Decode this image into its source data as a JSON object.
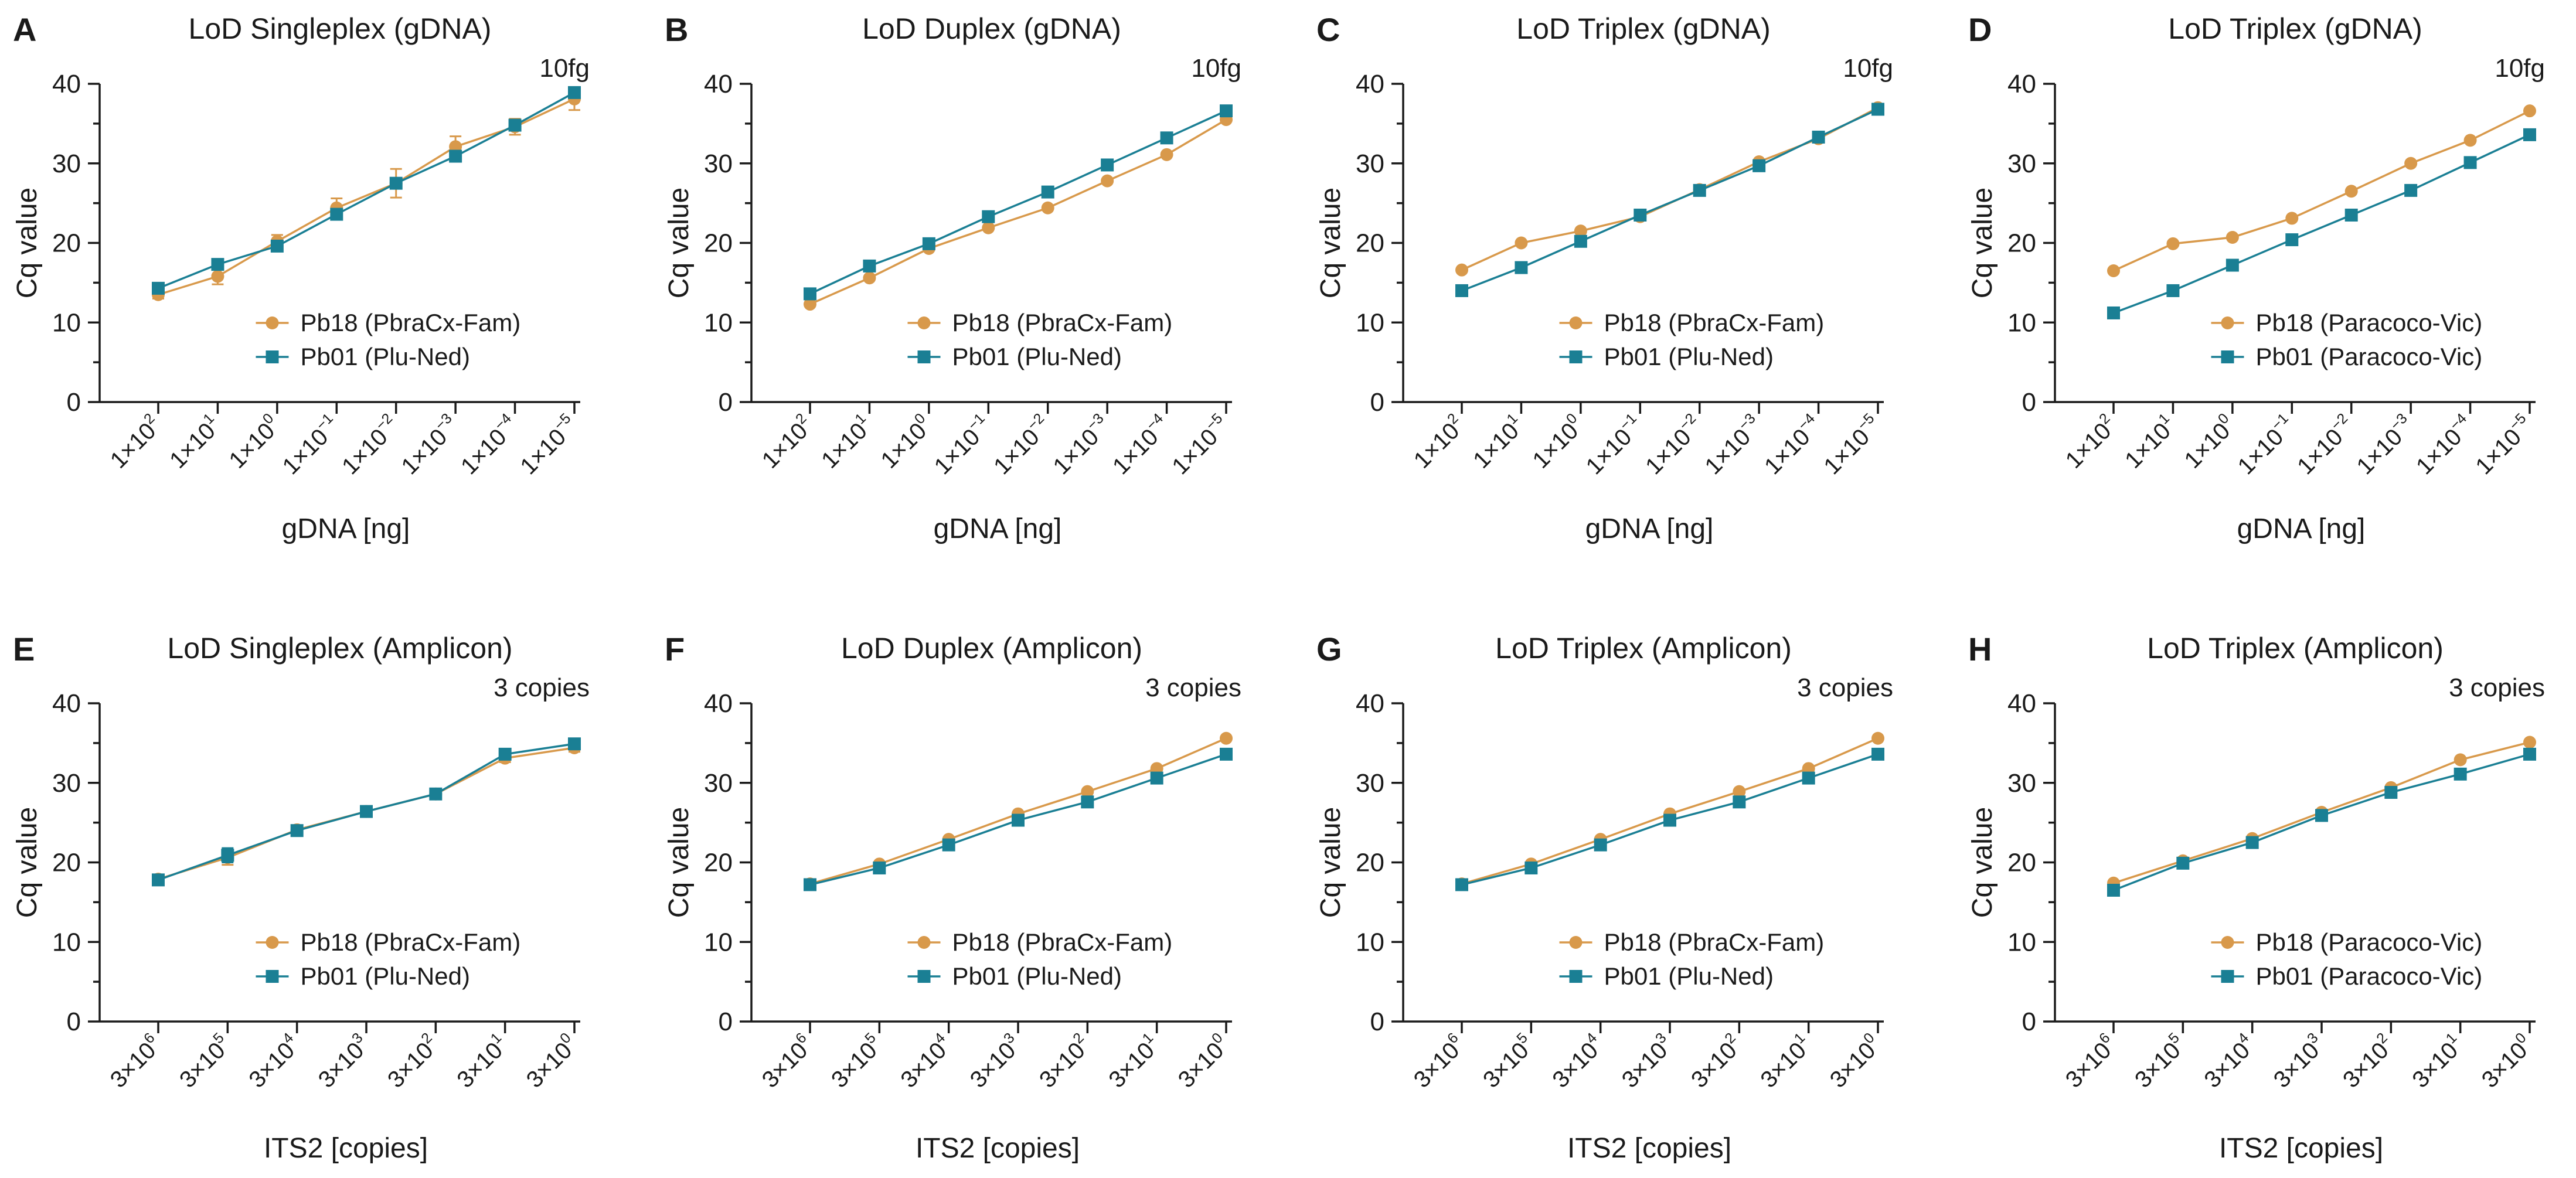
{
  "colors": {
    "series1": "#D8994B",
    "series2": "#1A7F94",
    "axis": "#1a1a1a"
  },
  "chart_data": [
    {
      "panel": "A",
      "type": "line",
      "title": "LoD Singleplex (gDNA)",
      "xlabel": "gDNA [ng]",
      "ylabel": "Cq value",
      "ylim": [
        0,
        40
      ],
      "yticks": [
        "0",
        "10",
        "20",
        "30",
        "40"
      ],
      "annotation": "10fg",
      "categories": [
        {
          "base": "1×10",
          "exp": "2"
        },
        {
          "base": "1×10",
          "exp": "1"
        },
        {
          "base": "1×10",
          "exp": "0"
        },
        {
          "base": "1×10",
          "exp": "−1"
        },
        {
          "base": "1×10",
          "exp": "−2"
        },
        {
          "base": "1×10",
          "exp": "−3"
        },
        {
          "base": "1×10",
          "exp": "−4"
        },
        {
          "base": "1×10",
          "exp": "−5"
        }
      ],
      "series": [
        {
          "name": "Pb18 (PbraCx-Fam)",
          "marker": "circle",
          "values": [
            13.5,
            15.8,
            20.2,
            24.4,
            27.5,
            32.1,
            34.6,
            38.1
          ],
          "errors": [
            0.5,
            1.0,
            0.8,
            1.2,
            1.8,
            1.3,
            1.0,
            1.4
          ]
        },
        {
          "name": "Pb01 (Plu-Ned)",
          "marker": "square",
          "values": [
            14.3,
            17.3,
            19.6,
            23.6,
            27.5,
            30.9,
            34.8,
            38.9
          ],
          "errors": [
            0.3,
            0.4,
            0.4,
            0.4,
            0.5,
            0.4,
            0.5,
            0.4
          ]
        }
      ]
    },
    {
      "panel": "B",
      "type": "line",
      "title": "LoD Duplex (gDNA)",
      "xlabel": "gDNA [ng]",
      "ylabel": "Cq value",
      "ylim": [
        0,
        40
      ],
      "yticks": [
        "0",
        "10",
        "20",
        "30",
        "40"
      ],
      "annotation": "10fg",
      "categories": [
        {
          "base": "1×10",
          "exp": "2"
        },
        {
          "base": "1×10",
          "exp": "1"
        },
        {
          "base": "1×10",
          "exp": "0"
        },
        {
          "base": "1×10",
          "exp": "−1"
        },
        {
          "base": "1×10",
          "exp": "−2"
        },
        {
          "base": "1×10",
          "exp": "−3"
        },
        {
          "base": "1×10",
          "exp": "−4"
        },
        {
          "base": "1×10",
          "exp": "−5"
        }
      ],
      "series": [
        {
          "name": "Pb18 (PbraCx-Fam)",
          "marker": "circle",
          "values": [
            12.3,
            15.6,
            19.3,
            21.9,
            24.4,
            27.8,
            31.1,
            35.5
          ],
          "errors": [
            0.3,
            0.3,
            0.3,
            0.3,
            0.3,
            0.3,
            0.3,
            0.3
          ]
        },
        {
          "name": "Pb01 (Plu-Ned)",
          "marker": "square",
          "values": [
            13.6,
            17.1,
            19.9,
            23.3,
            26.4,
            29.8,
            33.2,
            36.6
          ],
          "errors": [
            0.3,
            0.3,
            0.3,
            0.3,
            0.3,
            0.3,
            0.3,
            0.3
          ]
        }
      ]
    },
    {
      "panel": "C",
      "type": "line",
      "title": "LoD Triplex (gDNA)",
      "xlabel": "gDNA [ng]",
      "ylabel": "Cq value",
      "ylim": [
        0,
        40
      ],
      "yticks": [
        "0",
        "10",
        "20",
        "30",
        "40"
      ],
      "annotation": "10fg",
      "categories": [
        {
          "base": "1×10",
          "exp": "2"
        },
        {
          "base": "1×10",
          "exp": "1"
        },
        {
          "base": "1×10",
          "exp": "0"
        },
        {
          "base": "1×10",
          "exp": "−1"
        },
        {
          "base": "1×10",
          "exp": "−2"
        },
        {
          "base": "1×10",
          "exp": "−3"
        },
        {
          "base": "1×10",
          "exp": "−4"
        },
        {
          "base": "1×10",
          "exp": "−5"
        }
      ],
      "series": [
        {
          "name": "Pb18 (PbraCx-Fam)",
          "marker": "circle",
          "values": [
            16.6,
            20.0,
            21.5,
            23.3,
            26.7,
            30.2,
            33.1,
            37.0
          ],
          "errors": [
            0.3,
            0.3,
            0.3,
            0.3,
            0.3,
            0.3,
            0.3,
            0.3
          ]
        },
        {
          "name": "Pb01 (Plu-Ned)",
          "marker": "square",
          "values": [
            14.0,
            16.9,
            20.2,
            23.5,
            26.6,
            29.7,
            33.3,
            36.8
          ],
          "errors": [
            0.3,
            0.3,
            0.3,
            0.3,
            0.3,
            0.3,
            0.3,
            0.3
          ]
        }
      ]
    },
    {
      "panel": "D",
      "type": "line",
      "title": "LoD Triplex (gDNA)",
      "xlabel": "gDNA [ng]",
      "ylabel": "Cq value",
      "ylim": [
        0,
        40
      ],
      "yticks": [
        "0",
        "10",
        "20",
        "30",
        "40"
      ],
      "annotation": "10fg",
      "categories": [
        {
          "base": "1×10",
          "exp": "2"
        },
        {
          "base": "1×10",
          "exp": "1"
        },
        {
          "base": "1×10",
          "exp": "0"
        },
        {
          "base": "1×10",
          "exp": "−1"
        },
        {
          "base": "1×10",
          "exp": "−2"
        },
        {
          "base": "1×10",
          "exp": "−3"
        },
        {
          "base": "1×10",
          "exp": "−4"
        },
        {
          "base": "1×10",
          "exp": "−5"
        }
      ],
      "series": [
        {
          "name": "Pb18 (Paracoco-Vic)",
          "marker": "circle",
          "values": [
            16.5,
            19.9,
            20.7,
            23.1,
            26.5,
            30.0,
            32.9,
            36.6
          ],
          "errors": [
            0.3,
            0.3,
            0.3,
            0.3,
            0.3,
            0.3,
            0.3,
            0.3
          ]
        },
        {
          "name": "Pb01 (Paracoco-Vic)",
          "marker": "square",
          "values": [
            11.2,
            14.0,
            17.2,
            20.4,
            23.5,
            26.6,
            30.1,
            33.6
          ],
          "errors": [
            0.3,
            0.3,
            0.3,
            0.3,
            0.3,
            0.3,
            0.3,
            0.3
          ]
        }
      ]
    },
    {
      "panel": "E",
      "type": "line",
      "title": "LoD Singleplex (Amplicon)",
      "xlabel": "ITS2 [copies]",
      "ylabel": "Cq value",
      "ylim": [
        0,
        40
      ],
      "yticks": [
        "0",
        "10",
        "20",
        "30",
        "40"
      ],
      "annotation": "3 copies",
      "categories": [
        {
          "base": "3×10",
          "exp": "6"
        },
        {
          "base": "3×10",
          "exp": "5"
        },
        {
          "base": "3×10",
          "exp": "4"
        },
        {
          "base": "3×10",
          "exp": "3"
        },
        {
          "base": "3×10",
          "exp": "2"
        },
        {
          "base": "3×10",
          "exp": "1"
        },
        {
          "base": "3×10",
          "exp": "0"
        }
      ],
      "series": [
        {
          "name": "Pb18 (PbraCx-Fam)",
          "marker": "circle",
          "values": [
            17.9,
            20.6,
            24.1,
            26.4,
            28.6,
            33.1,
            34.4
          ],
          "errors": [
            0.4,
            0.9,
            0.5,
            0.4,
            0.4,
            0.5,
            0.5
          ]
        },
        {
          "name": "Pb01 (Plu-Ned)",
          "marker": "square",
          "values": [
            17.8,
            20.9,
            24.0,
            26.4,
            28.6,
            33.6,
            34.9
          ],
          "errors": [
            0.4,
            0.9,
            0.5,
            0.4,
            0.4,
            0.5,
            0.5
          ]
        }
      ]
    },
    {
      "panel": "F",
      "type": "line",
      "title": "LoD Duplex (Amplicon)",
      "xlabel": "ITS2 [copies]",
      "ylabel": "Cq value",
      "ylim": [
        0,
        40
      ],
      "yticks": [
        "0",
        "10",
        "20",
        "30",
        "40"
      ],
      "annotation": "3 copies",
      "categories": [
        {
          "base": "3×10",
          "exp": "6"
        },
        {
          "base": "3×10",
          "exp": "5"
        },
        {
          "base": "3×10",
          "exp": "4"
        },
        {
          "base": "3×10",
          "exp": "3"
        },
        {
          "base": "3×10",
          "exp": "2"
        },
        {
          "base": "3×10",
          "exp": "1"
        },
        {
          "base": "3×10",
          "exp": "0"
        }
      ],
      "series": [
        {
          "name": "Pb18 (PbraCx-Fam)",
          "marker": "circle",
          "values": [
            17.3,
            19.8,
            22.9,
            26.1,
            28.9,
            31.8,
            35.6
          ],
          "errors": [
            0.3,
            0.3,
            0.3,
            0.3,
            0.3,
            0.3,
            0.3
          ]
        },
        {
          "name": "Pb01 (Plu-Ned)",
          "marker": "square",
          "values": [
            17.2,
            19.3,
            22.2,
            25.3,
            27.6,
            30.6,
            33.6
          ],
          "errors": [
            0.3,
            0.3,
            0.3,
            0.3,
            0.3,
            0.3,
            0.3
          ]
        }
      ]
    },
    {
      "panel": "G",
      "type": "line",
      "title": "LoD Triplex (Amplicon)",
      "xlabel": "ITS2 [copies]",
      "ylabel": "Cq value",
      "ylim": [
        0,
        40
      ],
      "yticks": [
        "0",
        "10",
        "20",
        "30",
        "40"
      ],
      "annotation": "3 copies",
      "categories": [
        {
          "base": "3×10",
          "exp": "6"
        },
        {
          "base": "3×10",
          "exp": "5"
        },
        {
          "base": "3×10",
          "exp": "4"
        },
        {
          "base": "3×10",
          "exp": "3"
        },
        {
          "base": "3×10",
          "exp": "2"
        },
        {
          "base": "3×10",
          "exp": "1"
        },
        {
          "base": "3×10",
          "exp": "0"
        }
      ],
      "series": [
        {
          "name": "Pb18 (PbraCx-Fam)",
          "marker": "circle",
          "values": [
            17.3,
            19.8,
            22.9,
            26.1,
            28.9,
            31.8,
            35.6
          ],
          "errors": [
            0.3,
            0.3,
            0.3,
            0.3,
            0.3,
            0.3,
            0.3
          ]
        },
        {
          "name": "Pb01 (Plu-Ned)",
          "marker": "square",
          "values": [
            17.2,
            19.3,
            22.2,
            25.3,
            27.6,
            30.6,
            33.6
          ],
          "errors": [
            0.3,
            0.3,
            0.3,
            0.3,
            0.3,
            0.3,
            0.3
          ]
        }
      ]
    },
    {
      "panel": "H",
      "type": "line",
      "title": "LoD Triplex (Amplicon)",
      "xlabel": "ITS2 [copies]",
      "ylabel": "Cq value",
      "ylim": [
        0,
        40
      ],
      "yticks": [
        "0",
        "10",
        "20",
        "30",
        "40"
      ],
      "annotation": "3 copies",
      "categories": [
        {
          "base": "3×10",
          "exp": "6"
        },
        {
          "base": "3×10",
          "exp": "5"
        },
        {
          "base": "3×10",
          "exp": "4"
        },
        {
          "base": "3×10",
          "exp": "3"
        },
        {
          "base": "3×10",
          "exp": "2"
        },
        {
          "base": "3×10",
          "exp": "1"
        },
        {
          "base": "3×10",
          "exp": "0"
        }
      ],
      "series": [
        {
          "name": "Pb18 (Paracoco-Vic)",
          "marker": "circle",
          "values": [
            17.4,
            20.2,
            23.0,
            26.3,
            29.4,
            32.9,
            35.1
          ],
          "errors": [
            0.3,
            0.3,
            0.3,
            0.3,
            0.3,
            0.3,
            0.3
          ]
        },
        {
          "name": "Pb01 (Paracoco-Vic)",
          "marker": "square",
          "values": [
            16.5,
            19.9,
            22.5,
            25.9,
            28.8,
            31.1,
            33.6
          ],
          "errors": [
            0.3,
            0.3,
            0.3,
            0.3,
            0.3,
            0.3,
            0.3
          ]
        }
      ]
    }
  ]
}
